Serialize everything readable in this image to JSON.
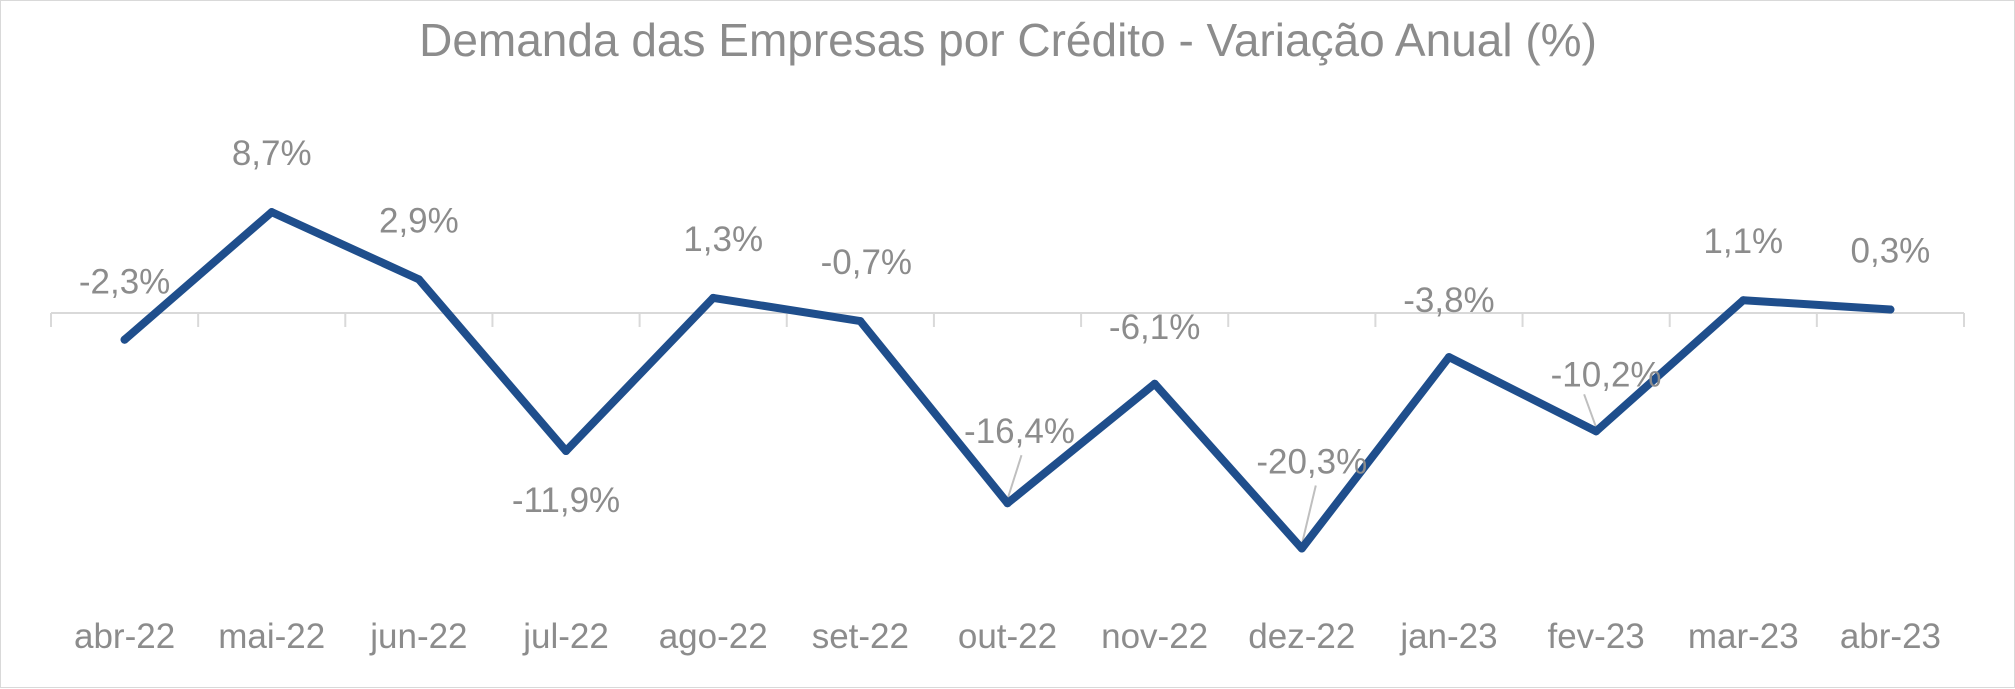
{
  "chart_data": {
    "type": "line",
    "title": "Demanda das Empresas por Crédito - Variação Anual (%)",
    "xlabel": "",
    "ylabel": "",
    "categories": [
      "abr-22",
      "mai-22",
      "jun-22",
      "jul-22",
      "ago-22",
      "set-22",
      "out-22",
      "nov-22",
      "dez-22",
      "jan-23",
      "fev-23",
      "mar-23",
      "abr-23"
    ],
    "series": [
      {
        "values": [
          -2.3,
          8.7,
          2.9,
          -11.9,
          1.3,
          -0.7,
          -16.4,
          -6.1,
          -20.3,
          -3.8,
          -10.2,
          1.1,
          0.3
        ],
        "labels": [
          "-2,3%",
          "8,7%",
          "2,9%",
          "-11,9%",
          "1,3%",
          "-0,7%",
          "-16,4%",
          "-6,1%",
          "-20,3%",
          "-3,8%",
          "-10,2%",
          "1,1%",
          "0,3%"
        ]
      }
    ],
    "ylim": [
      -25,
      10
    ],
    "grid": false,
    "legend": "none",
    "colors": {
      "line": "#1f4e8c",
      "axis": "#d9d9d9",
      "text": "#8c8c8c"
    }
  }
}
